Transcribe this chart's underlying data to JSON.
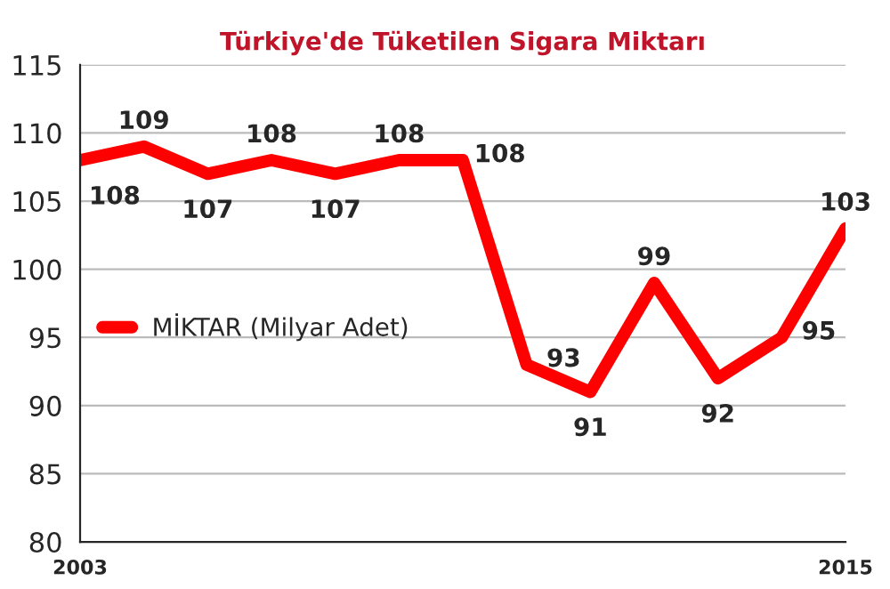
{
  "chart_data": {
    "type": "line",
    "title": "Türkiye'de Tüketilen Sigara Miktarı",
    "x": [
      2003,
      2004,
      2005,
      2006,
      2007,
      2008,
      2009,
      2010,
      2011,
      2012,
      2013,
      2014,
      2015
    ],
    "series": [
      {
        "name": "MİKTAR (Milyar Adet)",
        "color": "#ff0000",
        "values": [
          108,
          109,
          107,
          108,
          107,
          108,
          108,
          93,
          91,
          99,
          92,
          95,
          103
        ]
      }
    ],
    "xlim": [
      2003,
      2015
    ],
    "xticks": [
      2003,
      2015
    ],
    "ylim": [
      80,
      115
    ],
    "yticks": [
      80,
      85,
      90,
      95,
      100,
      105,
      110,
      115
    ],
    "grid": "y",
    "legend": "center left",
    "data_labels": true,
    "marker": "none",
    "line_style": "solid"
  }
}
